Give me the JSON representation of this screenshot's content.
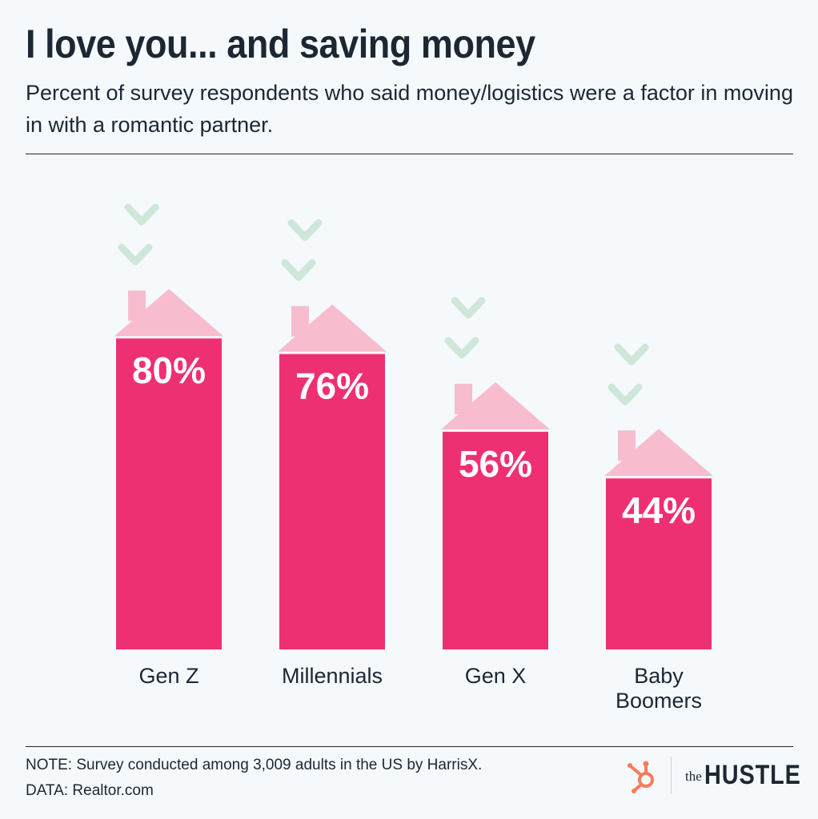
{
  "header": {
    "title": "I love you... and saving money",
    "subtitle": "Percent of survey respondents who said money/logistics were a factor in moving in with a romantic partner."
  },
  "chart_data": {
    "type": "bar",
    "categories": [
      "Gen Z",
      "Millennials",
      "Gen X",
      "Baby Boomers"
    ],
    "category_lines": [
      [
        "Gen Z"
      ],
      [
        "Millennials"
      ],
      [
        "Gen X"
      ],
      [
        "Baby",
        "Boomers"
      ]
    ],
    "values": [
      80,
      76,
      56,
      44
    ],
    "value_labels": [
      "80%",
      "76%",
      "56%",
      "44%"
    ],
    "unit": "%",
    "ylim": [
      0,
      100
    ],
    "grid": false,
    "title": "I love you... and saving money",
    "xlabel": "",
    "ylabel": "",
    "colors": {
      "bar": "#ef2f73",
      "roof": "#f8bccf",
      "heart": "#cfe7d9",
      "label": "#ffffff"
    }
  },
  "footer": {
    "note": "NOTE: Survey conducted among 3,009 adults in the US by HarrisX.",
    "data": "DATA: Realtor.com",
    "logo": {
      "prefix": "the",
      "name": "HUSTLE",
      "mark_icon": "hubspot-sprocket-icon",
      "mark_color": "#ff7a59"
    }
  }
}
